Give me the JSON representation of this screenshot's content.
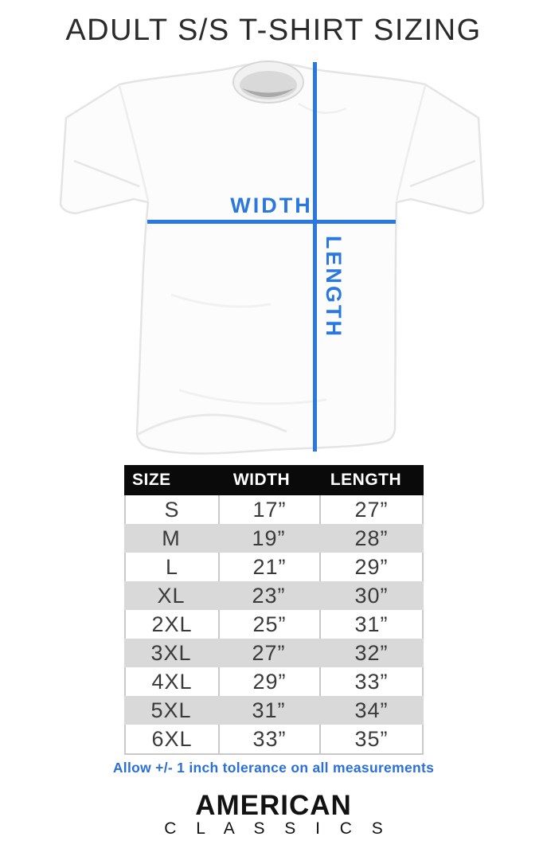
{
  "page": {
    "title": "ADULT S/S T-SHIRT SIZING"
  },
  "colors": {
    "accent_blue": "#2b77e0",
    "note_blue": "#2a6fd8",
    "header_bg": "#0a0a0a",
    "header_text": "#ffffff",
    "row_shade": "#d9d9d9"
  },
  "diagram": {
    "width_label": "WIDTH",
    "length_label": "LENGTH"
  },
  "table": {
    "headers": [
      "SIZE",
      "WIDTH",
      "LENGTH"
    ],
    "rows": [
      [
        "S",
        "17”",
        "27”"
      ],
      [
        "M",
        "19”",
        "28”"
      ],
      [
        "L",
        "21”",
        "29”"
      ],
      [
        "XL",
        "23”",
        "30”"
      ],
      [
        "2XL",
        "25”",
        "31”"
      ],
      [
        "3XL",
        "27”",
        "32”"
      ],
      [
        "4XL",
        "29”",
        "33”"
      ],
      [
        "5XL",
        "31”",
        "34”"
      ],
      [
        "6XL",
        "33”",
        "35”"
      ]
    ]
  },
  "note": {
    "text": "Allow +/- 1 inch tolerance on all measurements"
  },
  "logo": {
    "line1": "AMERICAN",
    "line2": "C L A S S I C S"
  },
  "chart_data": {
    "type": "table",
    "title": "ADULT S/S T-SHIRT SIZING",
    "columns": [
      "SIZE",
      "WIDTH",
      "LENGTH"
    ],
    "units": "inches",
    "rows": [
      [
        "S",
        17,
        27
      ],
      [
        "M",
        19,
        28
      ],
      [
        "L",
        21,
        29
      ],
      [
        "XL",
        23,
        30
      ],
      [
        "2XL",
        25,
        31
      ],
      [
        "3XL",
        27,
        32
      ],
      [
        "4XL",
        29,
        33
      ],
      [
        "5XL",
        31,
        34
      ],
      [
        "6XL",
        33,
        35
      ]
    ],
    "note": "Allow +/- 1 inch tolerance on all measurements"
  }
}
